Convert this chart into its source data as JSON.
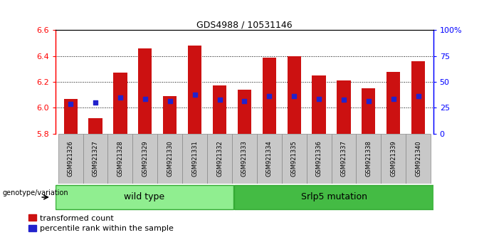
{
  "title": "GDS4988 / 10531146",
  "samples": [
    "GSM921326",
    "GSM921327",
    "GSM921328",
    "GSM921329",
    "GSM921330",
    "GSM921331",
    "GSM921332",
    "GSM921333",
    "GSM921334",
    "GSM921335",
    "GSM921336",
    "GSM921337",
    "GSM921338",
    "GSM921339",
    "GSM921340"
  ],
  "bar_values": [
    6.07,
    5.92,
    6.27,
    6.46,
    6.09,
    6.48,
    6.17,
    6.14,
    6.39,
    6.4,
    6.25,
    6.21,
    6.15,
    6.28,
    6.36
  ],
  "percentile_values": [
    6.03,
    6.04,
    6.08,
    6.07,
    6.05,
    6.1,
    6.06,
    6.05,
    6.09,
    6.09,
    6.07,
    6.06,
    6.05,
    6.07,
    6.09
  ],
  "ymin": 5.8,
  "ymax": 6.6,
  "y2min": 0,
  "y2max": 100,
  "yticks": [
    5.8,
    6.0,
    6.2,
    6.4,
    6.6
  ],
  "y2ticks": [
    0,
    25,
    50,
    75,
    100
  ],
  "bar_color": "#cc1111",
  "percentile_color": "#2222cc",
  "wild_type_label": "wild type",
  "mutation_label": "Srlp5 mutation",
  "group_label": "genotype/variation",
  "legend_bar_label": "transformed count",
  "legend_pct_label": "percentile rank within the sample",
  "light_green": "#90ee90",
  "dark_green": "#44bb44",
  "bg_gray": "#c8c8c8",
  "bar_width": 0.55
}
